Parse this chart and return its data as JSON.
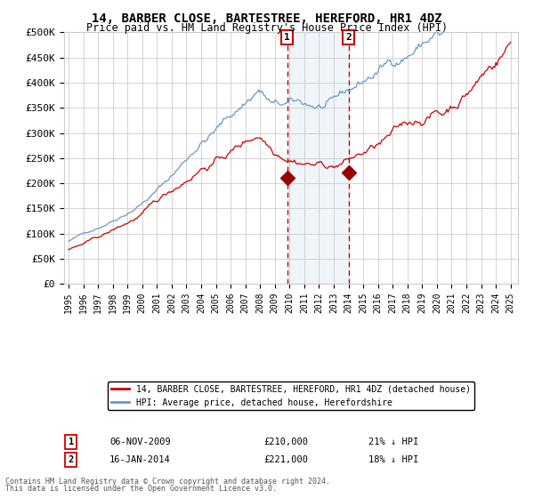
{
  "title": "14, BARBER CLOSE, BARTESTREE, HEREFORD, HR1 4DZ",
  "subtitle": "Price paid vs. HM Land Registry's House Price Index (HPI)",
  "legend_property": "14, BARBER CLOSE, BARTESTREE, HEREFORD, HR1 4DZ (detached house)",
  "legend_hpi": "HPI: Average price, detached house, Herefordshire",
  "footnote_line1": "Contains HM Land Registry data © Crown copyright and database right 2024.",
  "footnote_line2": "This data is licensed under the Open Government Licence v3.0.",
  "sale1_date": "06-NOV-2009",
  "sale1_price": 210000,
  "sale1_price_str": "£210,000",
  "sale1_note": "21% ↓ HPI",
  "sale2_date": "16-JAN-2014",
  "sale2_price": 221000,
  "sale2_price_str": "£221,000",
  "sale2_note": "18% ↓ HPI",
  "hpi_color": "#6699cc",
  "property_color": "#cc0000",
  "sale_marker_color": "#990000",
  "vline_color": "#cc0000",
  "shade_color": "#ddeeff",
  "grid_color": "#cccccc",
  "bg_color": "#ffffff",
  "ylim": [
    0,
    500000
  ],
  "yticks": [
    0,
    50000,
    100000,
    150000,
    200000,
    250000,
    300000,
    350000,
    400000,
    450000,
    500000
  ]
}
